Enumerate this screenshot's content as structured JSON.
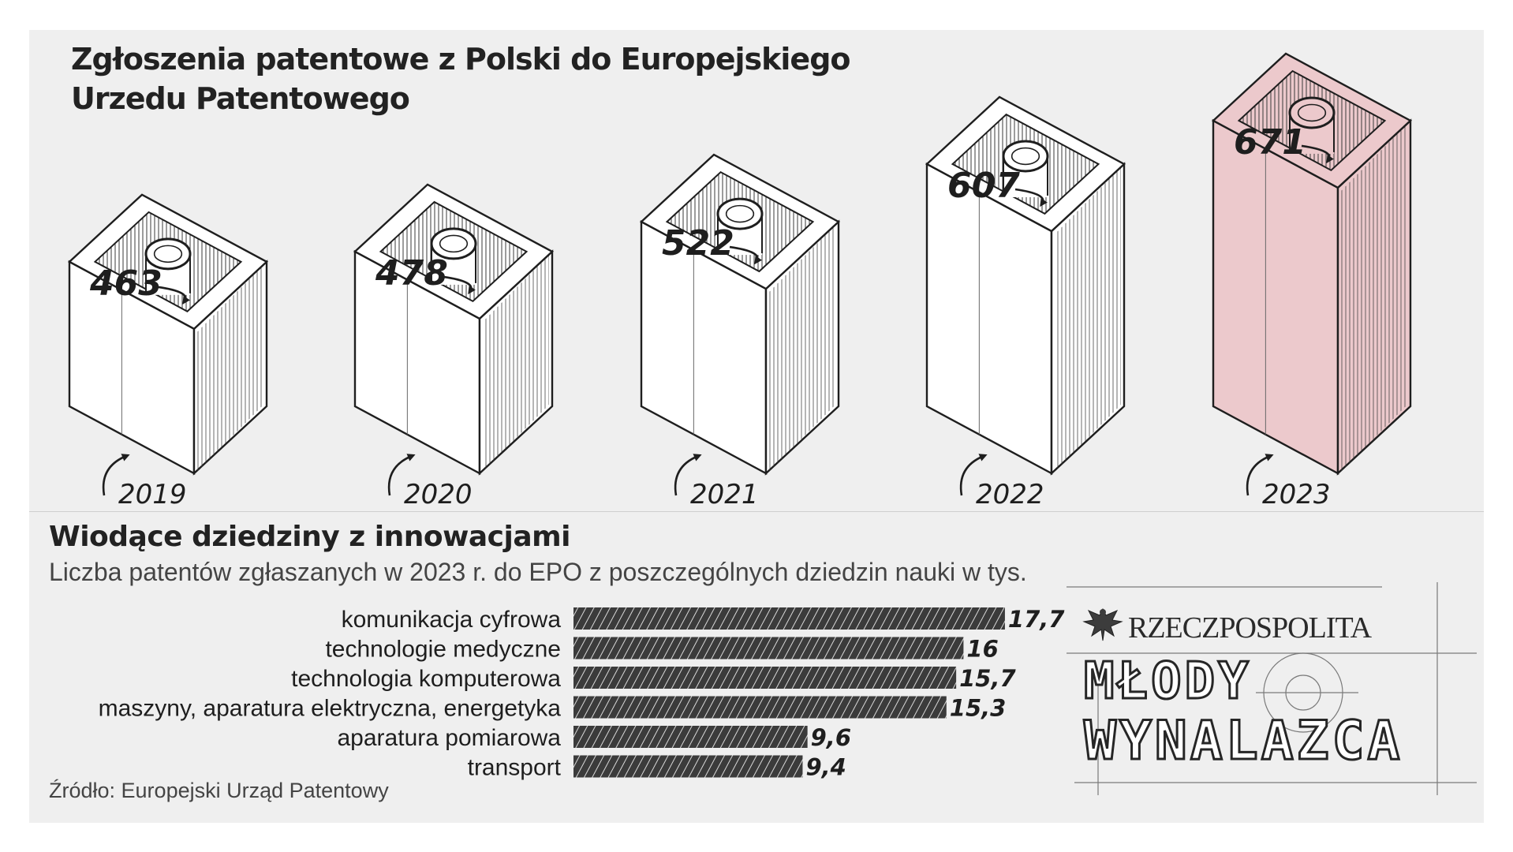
{
  "title": "Zgłoszenia patentowe z Polski do Europejskiego Urzedu Patentowego",
  "section": {
    "heading": "Wiodące dziedziny z innowacjami",
    "subtitle": "Liczba patentów zgłaszanych w 2023 r. do EPO z poszczególnych dziedzin nauki w tys."
  },
  "source": "Źródło: Europejski Urząd Patentowy",
  "logo": {
    "name": "RZECZPOSPOLITA",
    "line1": "MŁODY",
    "line2": "WYNALAZCA"
  },
  "colors": {
    "panel": "#efefef",
    "box_fill": "#ffffff",
    "highlight_fill": "#ecc9cc",
    "ink": "#1e1e1e"
  },
  "chart_data": [
    {
      "type": "bar",
      "categories": [
        "2019",
        "2020",
        "2021",
        "2022",
        "2023"
      ],
      "values": [
        463,
        478,
        522,
        607,
        671
      ],
      "highlight": "2023",
      "icon": "patent-box-icon"
    },
    {
      "type": "bar",
      "orientation": "horizontal",
      "categories": [
        "komunikacja cyfrowa",
        "technologie medyczne",
        "technologia komputerowa",
        "maszyny, aparatura elektryczna, energetyka",
        "aparatura pomiarowa",
        "transport"
      ],
      "values": [
        17.7,
        16,
        15.7,
        15.3,
        9.6,
        9.4
      ],
      "value_labels": [
        "17,7",
        "16",
        "15,7",
        "15,3",
        "9,6",
        "9,4"
      ]
    }
  ]
}
